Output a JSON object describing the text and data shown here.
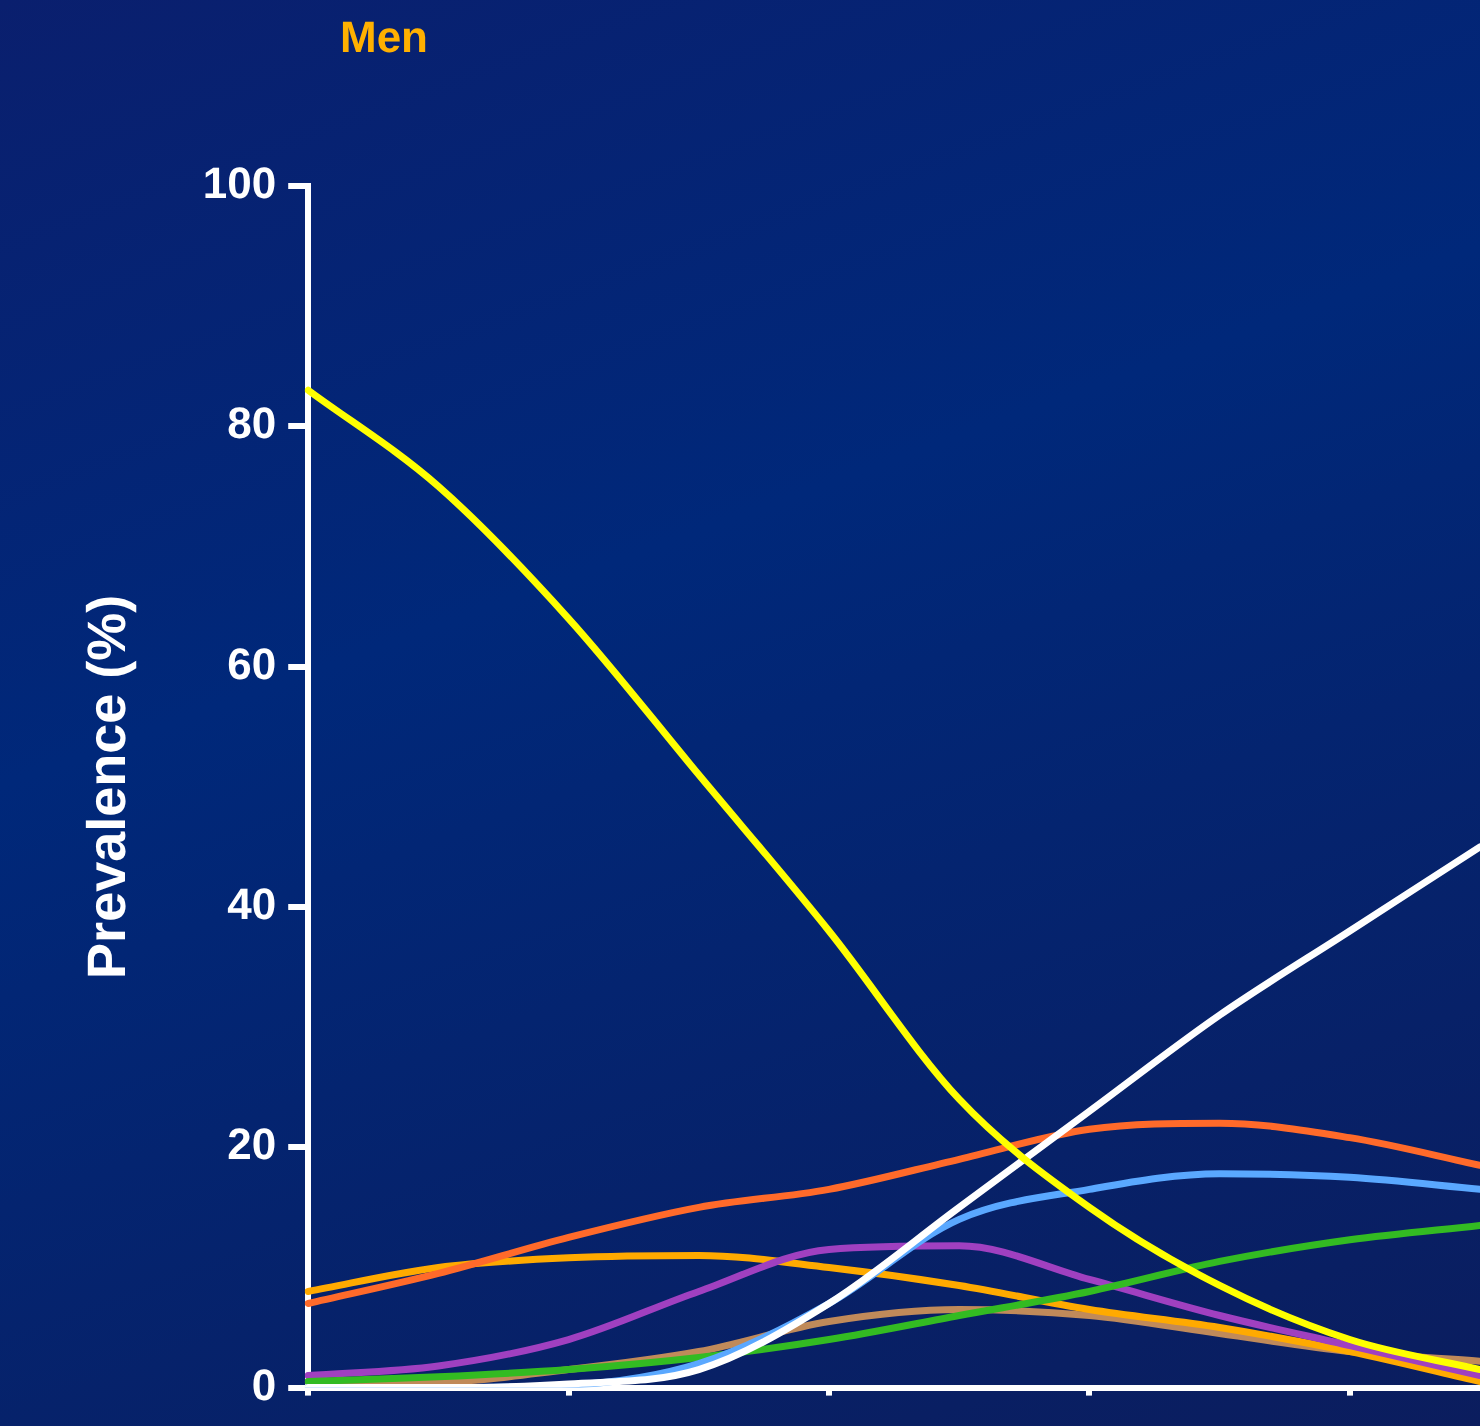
{
  "chart_data": {
    "type": "line",
    "title": "Men",
    "ylabel": "Prevalence (%)",
    "categories": [
      null,
      null,
      null,
      null,
      null,
      null,
      null,
      null,
      null,
      null
    ],
    "ylim": [
      0,
      100
    ],
    "yticks": [
      0,
      20,
      40,
      60,
      80,
      100
    ],
    "grid": false,
    "legend": false,
    "marker": "none",
    "line_style": "solid",
    "tick_labels": "y",
    "series": [
      {
        "color": "#ffff00",
        "values": [
          83,
          75,
          64,
          51,
          38,
          24,
          15,
          8.5,
          4,
          1.5
        ]
      },
      {
        "color": "#ffffff",
        "values": [
          0,
          0,
          0.3,
          1.5,
          7,
          15,
          23,
          31,
          38,
          45
        ]
      },
      {
        "color": "#ff6a2a",
        "values": [
          7,
          9.5,
          12.5,
          15,
          16.5,
          19,
          21.5,
          22,
          20.8,
          18.5
        ]
      },
      {
        "color": "#5aa8ff",
        "values": [
          0,
          0,
          0.2,
          2,
          7,
          14,
          16.5,
          17.8,
          17.5,
          16.5
        ]
      },
      {
        "color": "#33bb22",
        "values": [
          0.5,
          0.9,
          1.5,
          2.5,
          4,
          6,
          8,
          10.5,
          12.3,
          13.5
        ]
      },
      {
        "color": "#a040c0",
        "values": [
          1,
          1.8,
          4,
          8,
          11.5,
          11.8,
          9,
          6,
          3.5,
          1
        ]
      },
      {
        "color": "#ffaa00",
        "values": [
          8,
          10,
          10.8,
          11,
          10,
          8.5,
          6.5,
          5,
          3,
          0.5
        ]
      },
      {
        "color": "#c08a5a",
        "values": [
          0.5,
          0.5,
          1.5,
          3,
          5.5,
          6.5,
          6,
          4.5,
          3,
          2.2
        ]
      }
    ]
  }
}
